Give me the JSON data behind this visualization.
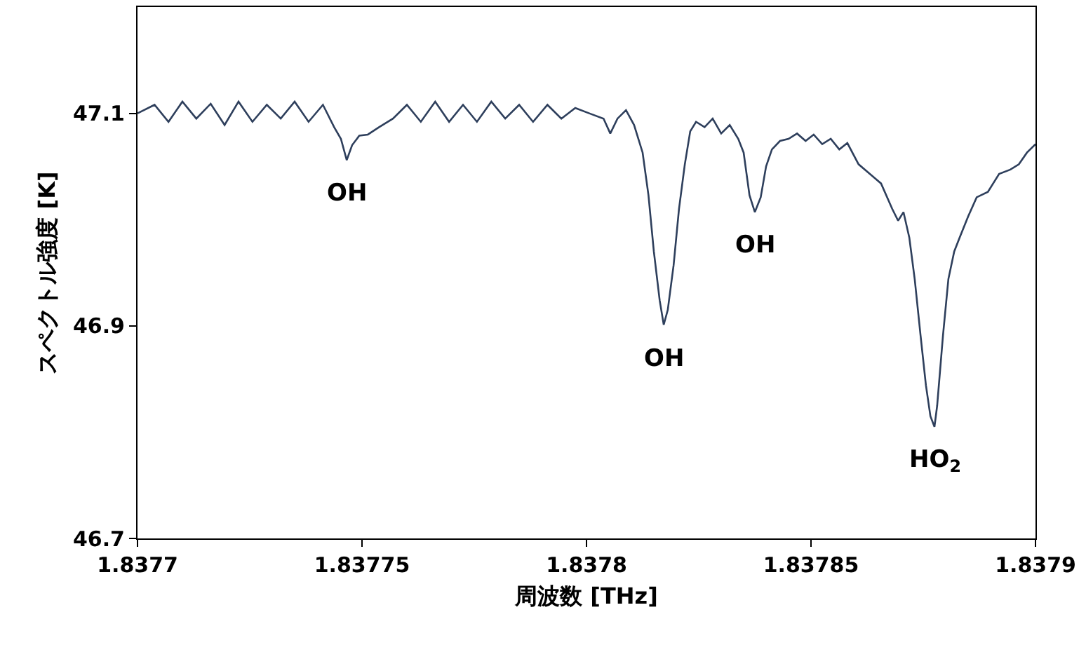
{
  "chart_data": {
    "type": "line",
    "xlabel": "周波数 [THz]",
    "ylabel": "スペクトル強度 [K]",
    "x": [
      1.8377,
      1.8377038,
      1.8377069,
      1.83771,
      1.8377131,
      1.8377163,
      1.8377194,
      1.8377225,
      1.8377256,
      1.8377288,
      1.8377319,
      1.837735,
      1.8377381,
      1.8377413,
      1.8377438,
      1.8377453,
      1.8377466,
      1.8377478,
      1.8377494,
      1.8377513,
      1.8377538,
      1.8377569,
      1.83776,
      1.8377631,
      1.8377663,
      1.8377694,
      1.8377725,
      1.8377756,
      1.8377788,
      1.8377819,
      1.837785,
      1.8377881,
      1.8377913,
      1.8377944,
      1.8377975,
      1.8378006,
      1.8378038,
      1.8378053,
      1.8378069,
      1.8378088,
      1.8378106,
      1.8378125,
      1.8378138,
      1.837815,
      1.8378163,
      1.8378172,
      1.8378181,
      1.8378194,
      1.8378206,
      1.8378219,
      1.8378231,
      1.8378244,
      1.8378263,
      1.8378281,
      1.83783,
      1.8378319,
      1.8378338,
      1.837835,
      1.8378363,
      1.8378375,
      1.8378388,
      1.83784,
      1.8378413,
      1.8378431,
      1.837845,
      1.8378469,
      1.8378488,
      1.8378506,
      1.8378525,
      1.8378544,
      1.8378563,
      1.8378581,
      1.8378606,
      1.8378631,
      1.8378656,
      1.8378681,
      1.8378694,
      1.8378706,
      1.8378719,
      1.8378731,
      1.8378744,
      1.8378756,
      1.8378766,
      1.8378775,
      1.8378781,
      1.8378794,
      1.8378806,
      1.8378819,
      1.8378831,
      1.837885,
      1.8378869,
      1.8378894,
      1.8378919,
      1.8378944,
      1.8378963,
      1.8378981,
      1.8379
    ],
    "series": [
      {
        "color": "#2e3f5c",
        "values": [
          47.1,
          47.108,
          47.092,
          47.111,
          47.095,
          47.109,
          47.089,
          47.111,
          47.092,
          47.108,
          47.095,
          47.111,
          47.092,
          47.108,
          47.087,
          47.076,
          47.056,
          47.07,
          47.079,
          47.08,
          47.087,
          47.095,
          47.108,
          47.092,
          47.111,
          47.092,
          47.108,
          47.092,
          47.111,
          47.095,
          47.108,
          47.092,
          47.108,
          47.095,
          47.105,
          47.1,
          47.095,
          47.081,
          47.095,
          47.103,
          47.089,
          47.063,
          47.023,
          46.97,
          46.924,
          46.901,
          46.915,
          46.957,
          47.01,
          47.052,
          47.083,
          47.092,
          47.087,
          47.095,
          47.081,
          47.089,
          47.076,
          47.063,
          47.023,
          47.007,
          47.021,
          47.05,
          47.066,
          47.074,
          47.076,
          47.081,
          47.074,
          47.08,
          47.071,
          47.076,
          47.066,
          47.072,
          47.052,
          47.043,
          47.034,
          47.01,
          46.999,
          47.007,
          46.983,
          46.944,
          46.891,
          46.844,
          46.815,
          46.805,
          46.825,
          46.891,
          46.944,
          46.97,
          46.983,
          47.003,
          47.021,
          47.026,
          47.043,
          47.047,
          47.052,
          47.063,
          47.071
        ]
      }
    ],
    "xlim": [
      1.8377,
      1.8379
    ],
    "xticks": [
      1.8377,
      1.83775,
      1.8378,
      1.83785,
      1.8379
    ],
    "ylim": [
      46.7,
      47.2
    ],
    "yticks": [
      46.7,
      46.9,
      47.1
    ],
    "marker": "none",
    "line_style": "solid",
    "annotations": [
      {
        "text": "OH",
        "x": 1.8377466,
        "y": 47.056
      },
      {
        "text": "OH",
        "x": 1.8378172,
        "y": 46.901
      },
      {
        "text": "OH",
        "x": 1.8378375,
        "y": 47.007
      },
      {
        "text": "HO$_{2}$",
        "x": 1.8378775,
        "y": 46.805
      }
    ]
  }
}
